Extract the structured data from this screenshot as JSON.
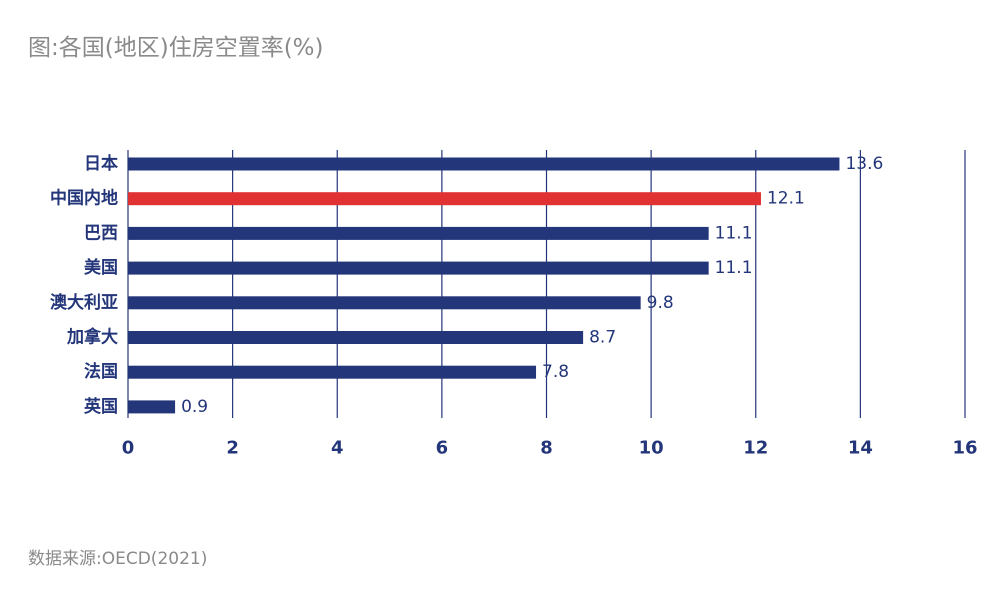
{
  "title": "图:各国(地区)住房空置率(%)",
  "source": "数据来源:OECD(2021)",
  "chart_data": {
    "type": "bar",
    "orientation": "horizontal",
    "categories": [
      "日本",
      "中国内地",
      "巴西",
      "美国",
      "澳大利亚",
      "加拿大",
      "法国",
      "英国"
    ],
    "values": [
      13.6,
      12.1,
      11.1,
      11.1,
      9.8,
      8.7,
      7.8,
      0.9
    ],
    "value_labels": [
      "13.6",
      "12.1",
      "11.1",
      "11.1",
      "9.8",
      "8.7",
      "7.8",
      "0.9"
    ],
    "highlight_category": "中国内地",
    "xlim": [
      0,
      16
    ],
    "xticks": [
      0,
      2,
      4,
      6,
      8,
      10,
      12,
      14,
      16
    ],
    "xtick_labels": [
      "0",
      "2",
      "4",
      "6",
      "8",
      "10",
      "12",
      "14",
      "16"
    ],
    "grid": "vertical",
    "colors": {
      "bar": "#24367a",
      "highlight": "#e03232",
      "grid": "#24367a",
      "text": "#24367a"
    }
  }
}
